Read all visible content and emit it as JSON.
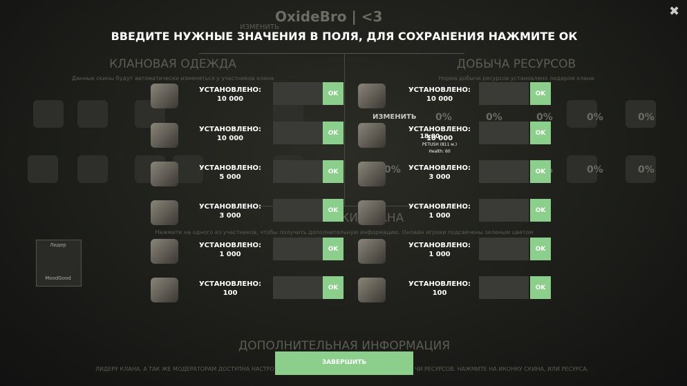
{
  "background": {
    "title": "OxideBro | <3",
    "edit_links": [
      "ИЗМЕНИТЬ",
      "ИЗМЕНИТЬ"
    ],
    "sections": [
      {
        "title": "КЛАНОВАЯ ОДЕЖДА",
        "subtitle": "Данные скины будут автоматически изменяться у участников клана"
      },
      {
        "title": "ДОБЫЧА РЕСУРСОВ",
        "subtitle": "Норма добычи ресурсов установлено лидером клана"
      },
      {
        "title": "УЧАСТНИКИ КЛАНА",
        "subtitle": "Нажмите на одного из участников, чтобы получить дополнительную информацию. Онлайн игроки подсвечены зеленым цветом"
      },
      {
        "title": "ДОПОЛНИТЕЛЬНАЯ ИНФОРМАЦИЯ",
        "subtitle": ""
      }
    ],
    "percentages": [
      "0%",
      "0%",
      "0%",
      "0%",
      "0%",
      "0%",
      "0%",
      "0%",
      "0%",
      "0%"
    ],
    "member": {
      "role": "Лидер",
      "name": "MoodGood"
    },
    "player_tooltip": {
      "time": "18:00",
      "name": "PETUSH (811 м.)",
      "health": "Health: 60"
    },
    "footer_fragments": [
      "ЛИДЕРУ КЛАНА, А ТАК ЖЕ МОДЕРАТОРАМ ДОСТУПНА НАСТРО",
      "ЧИ РЕСУРСОВ. НАЖМИТЕ НА ИКОНКУ СКИНА, ИЛИ РЕСУРСА."
    ]
  },
  "dialog": {
    "heading": "ВВЕДИТЕ НУЖНЫЕ ЗНАЧЕНИЯ В ПОЛЯ, ДЛЯ СОХРАНЕНИЯ НАЖМИТЕ ОК",
    "left": [
      {
        "label": "УСТАНОВЛЕНО:",
        "value": "10 000"
      },
      {
        "label": "УСТАНОВЛЕНО:",
        "value": "10 000"
      },
      {
        "label": "УСТАНОВЛЕНО:",
        "value": "5 000"
      },
      {
        "label": "УСТАНОВЛЕНО:",
        "value": "3 000"
      },
      {
        "label": "УСТАНОВЛЕНО:",
        "value": "1 000"
      },
      {
        "label": "УСТАНОВЛЕНО:",
        "value": "100"
      }
    ],
    "right": [
      {
        "label": "УСТАНОВЛЕНО:",
        "value": "10 000"
      },
      {
        "label": "УСТАНОВЛЕНО:",
        "value": "10 000"
      },
      {
        "label": "УСТАНОВЛЕНО:",
        "value": "3 000"
      },
      {
        "label": "УСТАНОВЛЕНО:",
        "value": "1 000"
      },
      {
        "label": "УСТАНОВЛЕНО:",
        "value": "1 000"
      },
      {
        "label": "УСТАНОВЛЕНО:",
        "value": "100"
      }
    ],
    "ok_button": "OK",
    "finish_button": "ЗАВЕРШИТЬ"
  },
  "close": "✖"
}
